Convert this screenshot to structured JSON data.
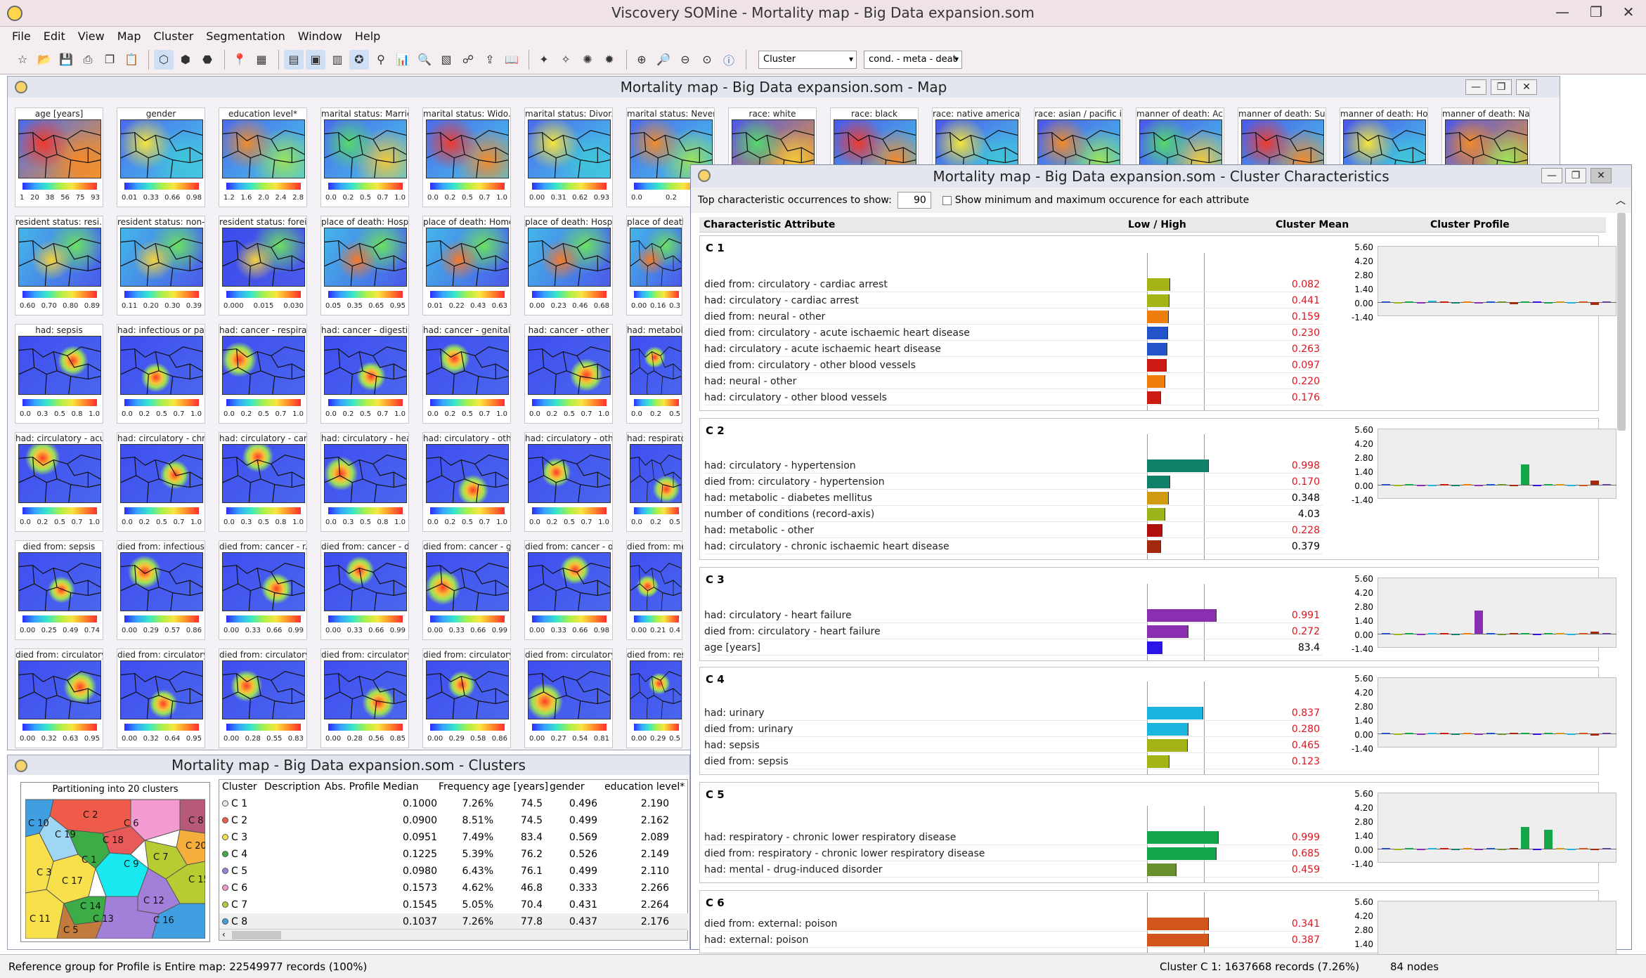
{
  "app": {
    "title": "Viscovery SOMine - Mortality map - Big Data expansion.som"
  },
  "menu": [
    "File",
    "Edit",
    "View",
    "Map",
    "Cluster",
    "Segmentation",
    "Window",
    "Help"
  ],
  "toolbar": {
    "combo1": "Cluster",
    "combo2": "cond. - meta - deat"
  },
  "map_window": {
    "title": "Mortality map - Big Data expansion.som - Map",
    "rows": [
      [
        {
          "label": "age [years]",
          "ticks": [
            "1",
            "20",
            "38",
            "56",
            "75",
            "93"
          ]
        },
        {
          "label": "gender",
          "ticks": [
            "0.01",
            "0.33",
            "0.66",
            "0.98"
          ]
        },
        {
          "label": "education level*",
          "ticks": [
            "1.2",
            "1.6",
            "2.0",
            "2.4",
            "2.8"
          ]
        },
        {
          "label": "marital status: Married",
          "ticks": [
            "0.0",
            "0.2",
            "0.5",
            "0.7",
            "1.0"
          ]
        },
        {
          "label": "marital status: Wido...",
          "ticks": [
            "0.0",
            "0.2",
            "0.5",
            "0.7",
            "1.0"
          ]
        },
        {
          "label": "marital status: Divor...",
          "ticks": [
            "0.00",
            "0.31",
            "0.62",
            "0.93"
          ]
        },
        {
          "label": "marital status: Never...",
          "ticks": [
            "0.0",
            "0.2",
            "0.5"
          ]
        },
        {
          "label": "race: white",
          "ticks": []
        },
        {
          "label": "race: black",
          "ticks": []
        },
        {
          "label": "race: native american",
          "ticks": []
        },
        {
          "label": "race: asian / pacific i...",
          "ticks": []
        },
        {
          "label": "manner of death: Ac...",
          "ticks": []
        },
        {
          "label": "manner of death: Su...",
          "ticks": []
        },
        {
          "label": "manner of death: Ho...",
          "ticks": []
        },
        {
          "label": "manner of death: Na...",
          "ticks": []
        }
      ],
      [
        {
          "label": "resident status: resi...",
          "ticks": [
            "0.60",
            "0.70",
            "0.80",
            "0.89"
          ]
        },
        {
          "label": "resident status: non-...",
          "ticks": [
            "0.11",
            "0.20",
            "0.30",
            "0.39"
          ]
        },
        {
          "label": "resident status: forei...",
          "ticks": [
            "0.000",
            "0.015",
            "0.030"
          ]
        },
        {
          "label": "place of death: Hosp...",
          "ticks": [
            "0.05",
            "0.35",
            "0.65",
            "0.95"
          ]
        },
        {
          "label": "place of death: Home",
          "ticks": [
            "0.01",
            "0.22",
            "0.43",
            "0.63"
          ]
        },
        {
          "label": "place of death: Hosp...",
          "ticks": [
            "0.00",
            "0.23",
            "0.46",
            "0.68"
          ]
        },
        {
          "label": "place of death",
          "ticks": [
            "0.00",
            "0.16",
            "0.3"
          ]
        }
      ],
      [
        {
          "label": "had: sepsis",
          "ticks": [
            "0.0",
            "0.3",
            "0.5",
            "0.8",
            "1.0"
          ]
        },
        {
          "label": "had: infectious or pa...",
          "ticks": [
            "0.0",
            "0.2",
            "0.5",
            "0.7",
            "1.0"
          ]
        },
        {
          "label": "had: cancer - respira...",
          "ticks": [
            "0.0",
            "0.2",
            "0.5",
            "0.7",
            "1.0"
          ]
        },
        {
          "label": "had: cancer - digesti...",
          "ticks": [
            "0.0",
            "0.2",
            "0.5",
            "0.7",
            "1.0"
          ]
        },
        {
          "label": "had: cancer - genital",
          "ticks": [
            "0.0",
            "0.2",
            "0.5",
            "0.7",
            "1.0"
          ]
        },
        {
          "label": "had: cancer - other",
          "ticks": [
            "0.0",
            "0.2",
            "0.5",
            "0.7",
            "1.0"
          ]
        },
        {
          "label": "had: metabolic",
          "ticks": [
            "0.0",
            "0.2",
            "0.5"
          ]
        }
      ],
      [
        {
          "label": "had: circulatory - acu...",
          "ticks": [
            "0.0",
            "0.2",
            "0.5",
            "0.7",
            "1.0"
          ]
        },
        {
          "label": "had: circulatory - chr...",
          "ticks": [
            "0.0",
            "0.2",
            "0.5",
            "0.7",
            "1.0"
          ]
        },
        {
          "label": "had: circulatory - car...",
          "ticks": [
            "0.0",
            "0.3",
            "0.5",
            "0.8",
            "1.0"
          ]
        },
        {
          "label": "had: circulatory - hea...",
          "ticks": [
            "0.0",
            "0.3",
            "0.5",
            "0.8",
            "1.0"
          ]
        },
        {
          "label": "had: circulatory - oth...",
          "ticks": [
            "0.0",
            "0.2",
            "0.5",
            "0.7",
            "1.0"
          ]
        },
        {
          "label": "had: circulatory - oth...",
          "ticks": [
            "0.0",
            "0.2",
            "0.5",
            "0.7",
            "1.0"
          ]
        },
        {
          "label": "had: respiratory",
          "ticks": [
            "0.0",
            "0.2",
            "0.5"
          ]
        }
      ],
      [
        {
          "label": "died from: sepsis",
          "ticks": [
            "0.00",
            "0.25",
            "0.49",
            "0.74"
          ]
        },
        {
          "label": "died from: infectious...",
          "ticks": [
            "0.00",
            "0.29",
            "0.57",
            "0.86"
          ]
        },
        {
          "label": "died from: cancer - r...",
          "ticks": [
            "0.00",
            "0.33",
            "0.66",
            "0.99"
          ]
        },
        {
          "label": "died from: cancer - d...",
          "ticks": [
            "0.00",
            "0.33",
            "0.66",
            "0.99"
          ]
        },
        {
          "label": "died from: cancer - g...",
          "ticks": [
            "0.00",
            "0.33",
            "0.66",
            "0.99"
          ]
        },
        {
          "label": "died from: cancer - o...",
          "ticks": [
            "0.00",
            "0.33",
            "0.66",
            "0.98"
          ]
        },
        {
          "label": "died from: meta",
          "ticks": [
            "0.00",
            "0.21",
            "0.4"
          ]
        }
      ],
      [
        {
          "label": "died from: circulatory...",
          "ticks": [
            "0.00",
            "0.32",
            "0.63",
            "0.95"
          ]
        },
        {
          "label": "died from: circulatory...",
          "ticks": [
            "0.00",
            "0.32",
            "0.64",
            "0.95"
          ]
        },
        {
          "label": "died from: circulatory...",
          "ticks": [
            "0.00",
            "0.28",
            "0.55",
            "0.83"
          ]
        },
        {
          "label": "died from: circulatory...",
          "ticks": [
            "0.00",
            "0.28",
            "0.56",
            "0.85"
          ]
        },
        {
          "label": "died from: circulatory...",
          "ticks": [
            "0.00",
            "0.29",
            "0.58",
            "0.86"
          ]
        },
        {
          "label": "died from: circulatory...",
          "ticks": [
            "0.00",
            "0.27",
            "0.54",
            "0.81"
          ]
        },
        {
          "label": "died from: resp",
          "ticks": [
            "0.00",
            "0.29",
            "0.5"
          ]
        }
      ]
    ]
  },
  "cc_window": {
    "title": "Mortality map - Big Data expansion.som - Cluster Characteristics",
    "top_label": "Top characteristic occurrences to show:",
    "top_value": "90",
    "minmax_label": "Show minimum and maximum occurence for each attribute",
    "headers": {
      "attr": "Characteristic Attribute",
      "lowhigh": "Low / High",
      "mean": "Cluster Mean",
      "profile": "Cluster Profile"
    },
    "yticks": [
      "5.60",
      "4.20",
      "2.80",
      "1.40",
      "0.00",
      "-1.40"
    ],
    "clusters": [
      {
        "name": "C 1",
        "rows": [
          {
            "attr": "died from: circulatory - cardiac arrest",
            "value": "0.082",
            "red": true,
            "bar": 0.3,
            "color": "#a3b318"
          },
          {
            "attr": "had: circulatory - cardiac arrest",
            "value": "0.441",
            "red": true,
            "bar": 0.29,
            "color": "#a3b318"
          },
          {
            "attr": "died from: neural - other",
            "value": "0.159",
            "red": true,
            "bar": 0.28,
            "color": "#f07e0e"
          },
          {
            "attr": "died from: circulatory - acute ischaemic heart disease",
            "value": "0.230",
            "red": true,
            "bar": 0.27,
            "color": "#2253c9"
          },
          {
            "attr": "had: circulatory - acute ischaemic heart disease",
            "value": "0.263",
            "red": true,
            "bar": 0.26,
            "color": "#2253c9"
          },
          {
            "attr": "died from: circulatory - other blood vessels",
            "value": "0.097",
            "red": true,
            "bar": 0.25,
            "color": "#cc1a12"
          },
          {
            "attr": "had: neural - other",
            "value": "0.220",
            "red": true,
            "bar": 0.24,
            "color": "#f07e0e"
          },
          {
            "attr": "had: circulatory - other blood vessels",
            "value": "0.176",
            "red": true,
            "bar": 0.18,
            "color": "#cc1a12"
          }
        ],
        "profile": [
          0.05,
          -0.05,
          0.08,
          -0.1,
          0.12,
          0.06,
          -0.08,
          0.1,
          -0.12,
          0.04,
          0.07,
          -0.2,
          0.05,
          0.09,
          -0.06,
          0.1,
          -0.1,
          0.05,
          -0.25,
          0.08
        ]
      },
      {
        "name": "C 2",
        "rows": [
          {
            "attr": "had: circulatory - hypertension",
            "value": "0.998",
            "red": true,
            "bar": 0.8,
            "color": "#11806a"
          },
          {
            "attr": "died from: circulatory - hypertension",
            "value": "0.170",
            "red": true,
            "bar": 0.3,
            "color": "#11806a"
          },
          {
            "attr": "had: metabolic - diabetes mellitus",
            "value": "0.348",
            "red": false,
            "bar": 0.28,
            "color": "#d29a11"
          },
          {
            "attr": "number of conditions (record-axis)",
            "value": "4.03",
            "red": false,
            "bar": 0.24,
            "color": "#9bb51a"
          },
          {
            "attr": "had: metabolic - other",
            "value": "0.228",
            "red": true,
            "bar": 0.2,
            "color": "#b0100c"
          },
          {
            "attr": "had: circulatory - chronic ischaemic heart disease",
            "value": "0.379",
            "red": false,
            "bar": 0.18,
            "color": "#a32a0e"
          }
        ],
        "profile": [
          0.05,
          -0.05,
          0.04,
          -0.06,
          0.03,
          0.05,
          -0.04,
          0.06,
          -0.05,
          0.04,
          0.05,
          0.03,
          2.0,
          -0.05,
          0.04,
          0.06,
          -0.05,
          0.03,
          0.4,
          0.05
        ]
      },
      {
        "name": "C 3",
        "rows": [
          {
            "attr": "had: circulatory - heart failure",
            "value": "0.991",
            "red": true,
            "bar": 0.9,
            "color": "#8a2fb0"
          },
          {
            "attr": "died from: circulatory - heart failure",
            "value": "0.272",
            "red": true,
            "bar": 0.54,
            "color": "#8a2fb0"
          },
          {
            "attr": "age [years]",
            "value": "83.4",
            "red": false,
            "bar": 0.2,
            "color": "#2a14e8"
          }
        ],
        "profile": [
          0.04,
          -0.04,
          0.05,
          -0.05,
          0.04,
          0.05,
          -0.04,
          0.05,
          2.3,
          0.04,
          -0.04,
          0.05,
          0.04,
          -0.05,
          0.04,
          0.05,
          -0.04,
          0.05,
          0.2,
          0.04
        ]
      },
      {
        "name": "C 4",
        "rows": [
          {
            "attr": "had: urinary",
            "value": "0.837",
            "red": true,
            "bar": 0.73,
            "color": "#1cb5e0"
          },
          {
            "attr": "died from: urinary",
            "value": "0.280",
            "red": true,
            "bar": 0.54,
            "color": "#1cb5e0"
          },
          {
            "attr": "had: sepsis",
            "value": "0.465",
            "red": true,
            "bar": 0.53,
            "color": "#a3b318"
          },
          {
            "attr": "died from: sepsis",
            "value": "0.123",
            "red": true,
            "bar": 0.29,
            "color": "#a3b318"
          }
        ],
        "profile": [
          0.04,
          -0.04,
          0.05,
          -0.05,
          0.04,
          0.05,
          -0.04,
          0.05,
          -0.04,
          0.04,
          -0.04,
          0.05,
          0.04,
          -0.05,
          0.04,
          0.05,
          -0.04,
          0.05,
          -0.2,
          0.04
        ]
      },
      {
        "name": "C 5",
        "rows": [
          {
            "attr": "had: respiratory - chronic lower respiratory disease",
            "value": "0.999",
            "red": true,
            "bar": 0.93,
            "color": "#14a64a"
          },
          {
            "attr": "died from: respiratory - chronic lower respiratory disease",
            "value": "0.685",
            "red": true,
            "bar": 0.9,
            "color": "#14a64a"
          },
          {
            "attr": "had: mental - drug-induced disorder",
            "value": "0.459",
            "red": true,
            "bar": 0.38,
            "color": "#6a8f2f"
          }
        ],
        "profile": [
          0.04,
          -0.04,
          0.05,
          -0.05,
          0.04,
          0.05,
          -0.04,
          0.05,
          -0.04,
          0.04,
          -0.04,
          0.05,
          2.2,
          -0.05,
          1.9,
          0.05,
          -0.04,
          0.05,
          -0.1,
          0.04
        ]
      },
      {
        "name": "C 6",
        "rows": [
          {
            "attr": "died from: external: poison",
            "value": "0.341",
            "red": true,
            "bar": 0.8,
            "color": "#d2551c"
          },
          {
            "attr": "had: external: poison",
            "value": "0.387",
            "red": true,
            "bar": 0.8,
            "color": "#d2551c"
          }
        ],
        "profile": []
      }
    ]
  },
  "clusters_window": {
    "title": "Mortality map - Big Data expansion.som - Clusters",
    "partition_title": "Partitioning into 20 clusters",
    "map_labels": [
      "C 2",
      "C 6",
      "C 8",
      "C 10",
      "C 19",
      "C 18",
      "C 20",
      "C 7",
      "C 3",
      "C 1",
      "C 9",
      "C 15",
      "C 17",
      "C 14",
      "C 12",
      "C 11",
      "C 5",
      "C 13",
      "C 16"
    ],
    "columns": [
      "Cluster",
      "Description",
      "Abs. Profile Median",
      "Frequency",
      "age [years]",
      "gender",
      "education level*"
    ],
    "rows": [
      {
        "name": "C 1",
        "color": "#e8e8e8",
        "median": "0.1000",
        "freq": "7.26%",
        "age": "74.5",
        "gender": "0.496",
        "edu": "2.190"
      },
      {
        "name": "C 2",
        "color": "#ee5b4a",
        "median": "0.0900",
        "freq": "8.51%",
        "age": "74.5",
        "gender": "0.499",
        "edu": "2.162"
      },
      {
        "name": "C 3",
        "color": "#f8e04c",
        "median": "0.0951",
        "freq": "7.49%",
        "age": "83.4",
        "gender": "0.569",
        "edu": "2.089"
      },
      {
        "name": "C 4",
        "color": "#3cac46",
        "median": "0.1225",
        "freq": "5.39%",
        "age": "76.2",
        "gender": "0.526",
        "edu": "2.149"
      },
      {
        "name": "C 5",
        "color": "#a27fd8",
        "median": "0.0980",
        "freq": "6.43%",
        "age": "76.1",
        "gender": "0.499",
        "edu": "2.110"
      },
      {
        "name": "C 6",
        "color": "#f39ad0",
        "median": "0.1573",
        "freq": "4.62%",
        "age": "46.8",
        "gender": "0.333",
        "edu": "2.266"
      },
      {
        "name": "C 7",
        "color": "#b7cc32",
        "median": "0.1545",
        "freq": "5.05%",
        "age": "70.4",
        "gender": "0.431",
        "edu": "2.264"
      },
      {
        "name": "C 8",
        "color": "#3f9fe0",
        "median": "0.1037",
        "freq": "7.26%",
        "age": "77.8",
        "gender": "0.437",
        "edu": "2.176"
      }
    ]
  },
  "status": {
    "left": "Reference group for Profile is Entire map: 22549977 records (100%)",
    "mid": "Cluster C 1: 1637668 records (7.26%)",
    "right": "84 nodes"
  }
}
